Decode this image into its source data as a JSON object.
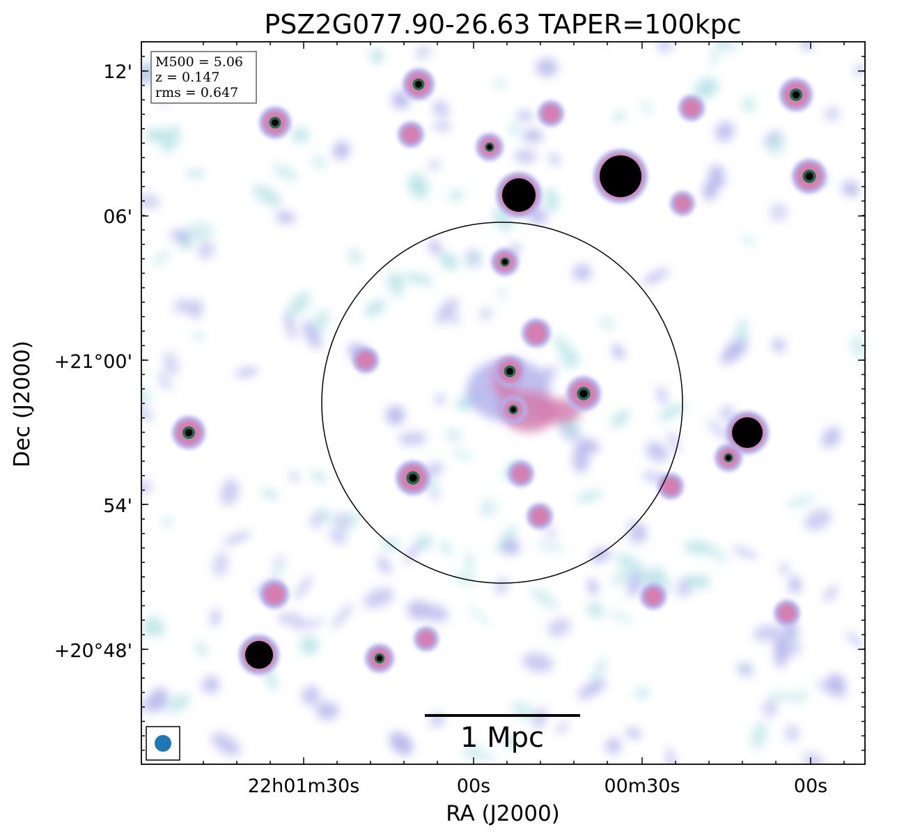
{
  "figure": {
    "title": "PSZ2G077.90-26.63 TAPER=100kpc",
    "info_box": [
      "M500 = 5.06",
      "z = 0.147",
      "rms = 0.647"
    ],
    "scale_bar_label": "1 Mpc",
    "x_axis": {
      "label": "RA (J2000)",
      "tick_labels": [
        "22h01m30s",
        "00s",
        "00m30s",
        "00s"
      ]
    },
    "y_axis": {
      "label": "Dec (J2000)",
      "tick_labels": [
        "12'",
        "06'",
        "+21°00'",
        "54'",
        "+20°48'"
      ]
    },
    "colors": {
      "faint_emission": "#b9e4e8",
      "low_emission": "#b4b4ec",
      "mid_emission": "#d47fb0",
      "high_emission": "#1e6e4e",
      "peak_emission": "#000000",
      "beam": "#1f77b4"
    },
    "icons": [
      "beam-ellipse"
    ]
  }
}
